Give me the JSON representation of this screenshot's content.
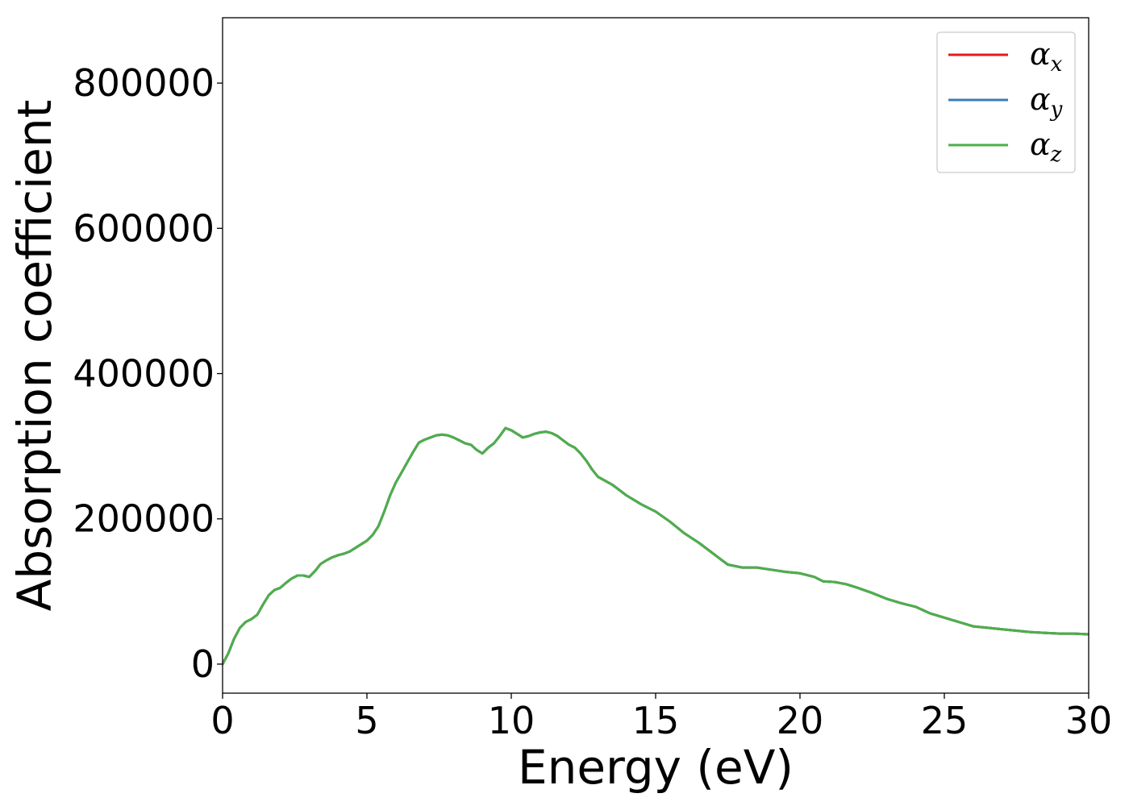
{
  "chart_data": {
    "type": "line",
    "xlabel": "Energy (eV)",
    "ylabel": "Absorption coefficient",
    "xlim": [
      0,
      30
    ],
    "ylim": [
      -40000,
      890000
    ],
    "xticks": [
      0,
      5,
      10,
      15,
      20,
      25,
      30
    ],
    "xtick_labels": [
      "0",
      "5",
      "10",
      "15",
      "20",
      "25",
      "30"
    ],
    "yticks": [
      0,
      200000,
      400000,
      600000,
      800000
    ],
    "ytick_labels": [
      "0",
      "200000",
      "400000",
      "600000",
      "800000"
    ],
    "grid": false,
    "legend_position": "top-right",
    "x": [
      0,
      0.2,
      0.4,
      0.6,
      0.8,
      1.0,
      1.2,
      1.4,
      1.6,
      1.8,
      2.0,
      2.2,
      2.4,
      2.6,
      2.8,
      3.0,
      3.2,
      3.4,
      3.6,
      3.8,
      4.0,
      4.2,
      4.4,
      4.6,
      4.8,
      5.0,
      5.2,
      5.4,
      5.6,
      5.8,
      6.0,
      6.2,
      6.4,
      6.6,
      6.8,
      7.0,
      7.2,
      7.4,
      7.6,
      7.8,
      8.0,
      8.2,
      8.4,
      8.6,
      8.8,
      9.0,
      9.2,
      9.4,
      9.6,
      9.8,
      10.0,
      10.2,
      10.4,
      10.6,
      10.8,
      11.0,
      11.2,
      11.4,
      11.6,
      11.8,
      12.0,
      12.2,
      12.4,
      12.6,
      12.8,
      13.0,
      13.5,
      14.0,
      14.5,
      15.0,
      15.5,
      16.0,
      16.5,
      17.0,
      17.5,
      18.0,
      18.5,
      19.0,
      19.5,
      20.0,
      20.5,
      20.8,
      21.2,
      21.6,
      22.0,
      22.5,
      23.0,
      23.5,
      24.0,
      24.5,
      25.0,
      25.5,
      26.0,
      26.5,
      27.0,
      27.5,
      28.0,
      28.5,
      29.0,
      29.5,
      30.0
    ],
    "series": [
      {
        "name": "α_x",
        "color": "#e41a1c",
        "y": [
          0,
          15000,
          35000,
          50000,
          58000,
          62000,
          68000,
          82000,
          95000,
          102000,
          105000,
          112000,
          118000,
          122000,
          122000,
          120000,
          128000,
          138000,
          143000,
          147000,
          150000,
          152000,
          155000,
          160000,
          165000,
          170000,
          178000,
          190000,
          210000,
          232000,
          250000,
          264000,
          278000,
          292000,
          305000,
          309000,
          312000,
          315000,
          316000,
          315000,
          312000,
          308000,
          304000,
          302000,
          295000,
          290000,
          298000,
          304000,
          314000,
          325000,
          322000,
          317000,
          312000,
          314000,
          317000,
          319000,
          320000,
          318000,
          314000,
          308000,
          302000,
          298000,
          290000,
          280000,
          268000,
          258000,
          247000,
          232000,
          220000,
          210000,
          196000,
          180000,
          167000,
          152000,
          137000,
          133000,
          133000,
          130000,
          127000,
          125000,
          120000,
          114000,
          113000,
          110000,
          105000,
          98000,
          90000,
          84000,
          79000,
          70000,
          64000,
          58000,
          52000,
          50000,
          48000,
          46000,
          44000,
          43000,
          42000,
          42000,
          41000
        ]
      },
      {
        "name": "α_y",
        "color": "#377eb8",
        "y": [
          0,
          15000,
          35000,
          50000,
          58000,
          62000,
          68000,
          82000,
          95000,
          102000,
          105000,
          112000,
          118000,
          122000,
          122000,
          120000,
          128000,
          138000,
          143000,
          147000,
          150000,
          152000,
          155000,
          160000,
          165000,
          170000,
          178000,
          190000,
          210000,
          232000,
          250000,
          264000,
          278000,
          292000,
          305000,
          309000,
          312000,
          315000,
          316000,
          315000,
          312000,
          308000,
          304000,
          302000,
          295000,
          290000,
          298000,
          304000,
          314000,
          325000,
          322000,
          317000,
          312000,
          314000,
          317000,
          319000,
          320000,
          318000,
          314000,
          308000,
          302000,
          298000,
          290000,
          280000,
          268000,
          258000,
          247000,
          232000,
          220000,
          210000,
          196000,
          180000,
          167000,
          152000,
          137000,
          133000,
          133000,
          130000,
          127000,
          125000,
          120000,
          114000,
          113000,
          110000,
          105000,
          98000,
          90000,
          84000,
          79000,
          70000,
          64000,
          58000,
          52000,
          50000,
          48000,
          46000,
          44000,
          43000,
          42000,
          42000,
          41000
        ]
      },
      {
        "name": "α_z",
        "color": "#4daf4a",
        "y": [
          0,
          15000,
          35000,
          50000,
          58000,
          62000,
          68000,
          82000,
          95000,
          102000,
          105000,
          112000,
          118000,
          122000,
          122000,
          120000,
          128000,
          138000,
          143000,
          147000,
          150000,
          152000,
          155000,
          160000,
          165000,
          170000,
          178000,
          190000,
          210000,
          232000,
          250000,
          264000,
          278000,
          292000,
          305000,
          309000,
          312000,
          315000,
          316000,
          315000,
          312000,
          308000,
          304000,
          302000,
          295000,
          290000,
          298000,
          304000,
          314000,
          325000,
          322000,
          317000,
          312000,
          314000,
          317000,
          319000,
          320000,
          318000,
          314000,
          308000,
          302000,
          298000,
          290000,
          280000,
          268000,
          258000,
          247000,
          232000,
          220000,
          210000,
          196000,
          180000,
          167000,
          152000,
          137000,
          133000,
          133000,
          130000,
          127000,
          125000,
          120000,
          114000,
          113000,
          110000,
          105000,
          98000,
          90000,
          84000,
          79000,
          70000,
          64000,
          58000,
          52000,
          50000,
          48000,
          46000,
          44000,
          43000,
          42000,
          42000,
          41000
        ]
      }
    ],
    "legend": [
      {
        "symbol": "α",
        "sub": "x",
        "color": "#e41a1c"
      },
      {
        "symbol": "α",
        "sub": "y",
        "color": "#377eb8"
      },
      {
        "symbol": "α",
        "sub": "z",
        "color": "#4daf4a"
      }
    ]
  }
}
